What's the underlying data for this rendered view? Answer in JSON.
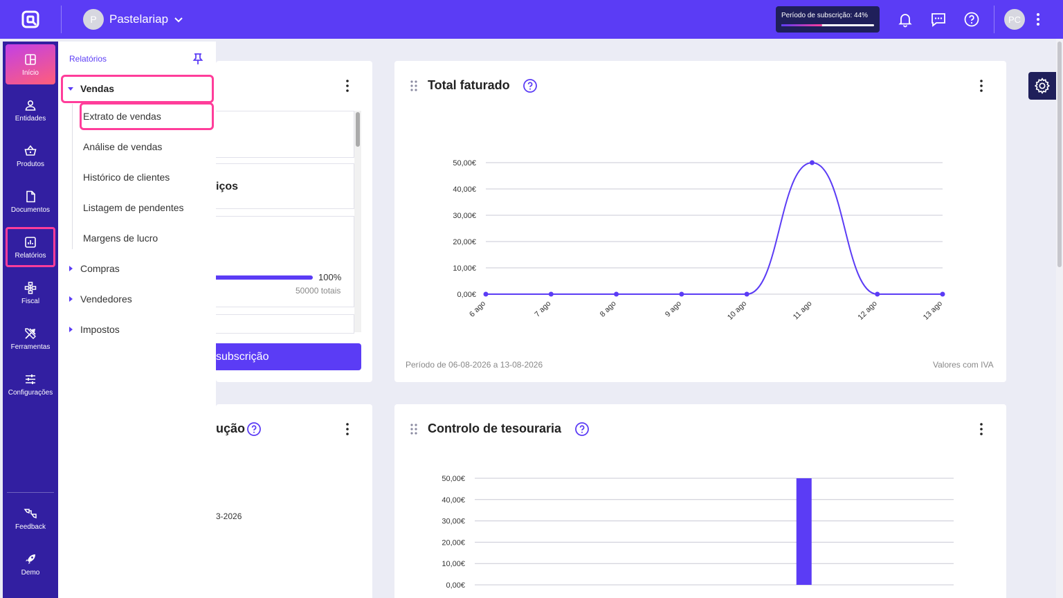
{
  "header": {
    "workspace_initial": "P",
    "workspace_name": "Pastelariap",
    "subscription_label": "Período de subscrição: 44%",
    "subscription_progress": 0.44,
    "user_initials": "PC"
  },
  "nav": {
    "items": [
      {
        "label": "Início",
        "icon": "grid-icon"
      },
      {
        "label": "Entidades",
        "icon": "person-icon"
      },
      {
        "label": "Produtos",
        "icon": "basket-icon"
      },
      {
        "label": "Documentos",
        "icon": "document-icon"
      },
      {
        "label": "Relatórios",
        "icon": "report-icon"
      },
      {
        "label": "Fiscal",
        "icon": "hierarchy-icon"
      },
      {
        "label": "Ferramentas",
        "icon": "tools-icon"
      },
      {
        "label": "Configurações",
        "icon": "sliders-icon"
      }
    ],
    "bottom": [
      {
        "label": "Feedback",
        "icon": "feedback-icon"
      },
      {
        "label": "Demo",
        "icon": "rocket-icon"
      }
    ]
  },
  "flyout": {
    "title": "Relatórios",
    "groups": [
      {
        "label": "Vendas",
        "expanded": true,
        "children": [
          "Extrato de vendas",
          "Análise de vendas",
          "Histórico de clientes",
          "Listagem de pendentes",
          "Margens de lucro"
        ]
      },
      {
        "label": "Compras",
        "expanded": false
      },
      {
        "label": "Vendedores",
        "expanded": false
      },
      {
        "label": "Impostos",
        "expanded": false
      }
    ]
  },
  "card_left_top": {
    "partial_heading": "iços",
    "progress_pct": "100%",
    "progress_value": 1.0,
    "totals": "50000 totais",
    "button_partial": "subscrição"
  },
  "card_left_bottom": {
    "partial_title": "ução",
    "partial_date": "3-2026"
  },
  "card_total": {
    "title": "Total faturado",
    "footer_left": "Período de 06-08-2026 a 13-08-2026",
    "footer_right": "Valores com IVA"
  },
  "card_tesouraria": {
    "title": "Controlo de tesouraria"
  },
  "chart_data": [
    {
      "type": "line",
      "title": "Total faturado",
      "categories": [
        "6 ago",
        "7 ago",
        "8 ago",
        "9 ago",
        "10 ago",
        "11 ago",
        "12 ago",
        "13 ago"
      ],
      "values": [
        0,
        0,
        0,
        0,
        0,
        50,
        0,
        0
      ],
      "yticks": [
        "0,00€",
        "10,00€",
        "20,00€",
        "30,00€",
        "40,00€",
        "50,00€"
      ],
      "ylim": [
        0,
        50
      ],
      "grid": true,
      "color": "#5b3cf5"
    },
    {
      "type": "bar",
      "title": "Controlo de tesouraria",
      "values": [
        0,
        0,
        0,
        0,
        0,
        50,
        0,
        0
      ],
      "yticks": [
        "0,00€",
        "10,00€",
        "20,00€",
        "30,00€",
        "40,00€",
        "50,00€"
      ],
      "ylim": [
        0,
        50
      ],
      "grid": true,
      "color": "#5b3cf5"
    }
  ]
}
